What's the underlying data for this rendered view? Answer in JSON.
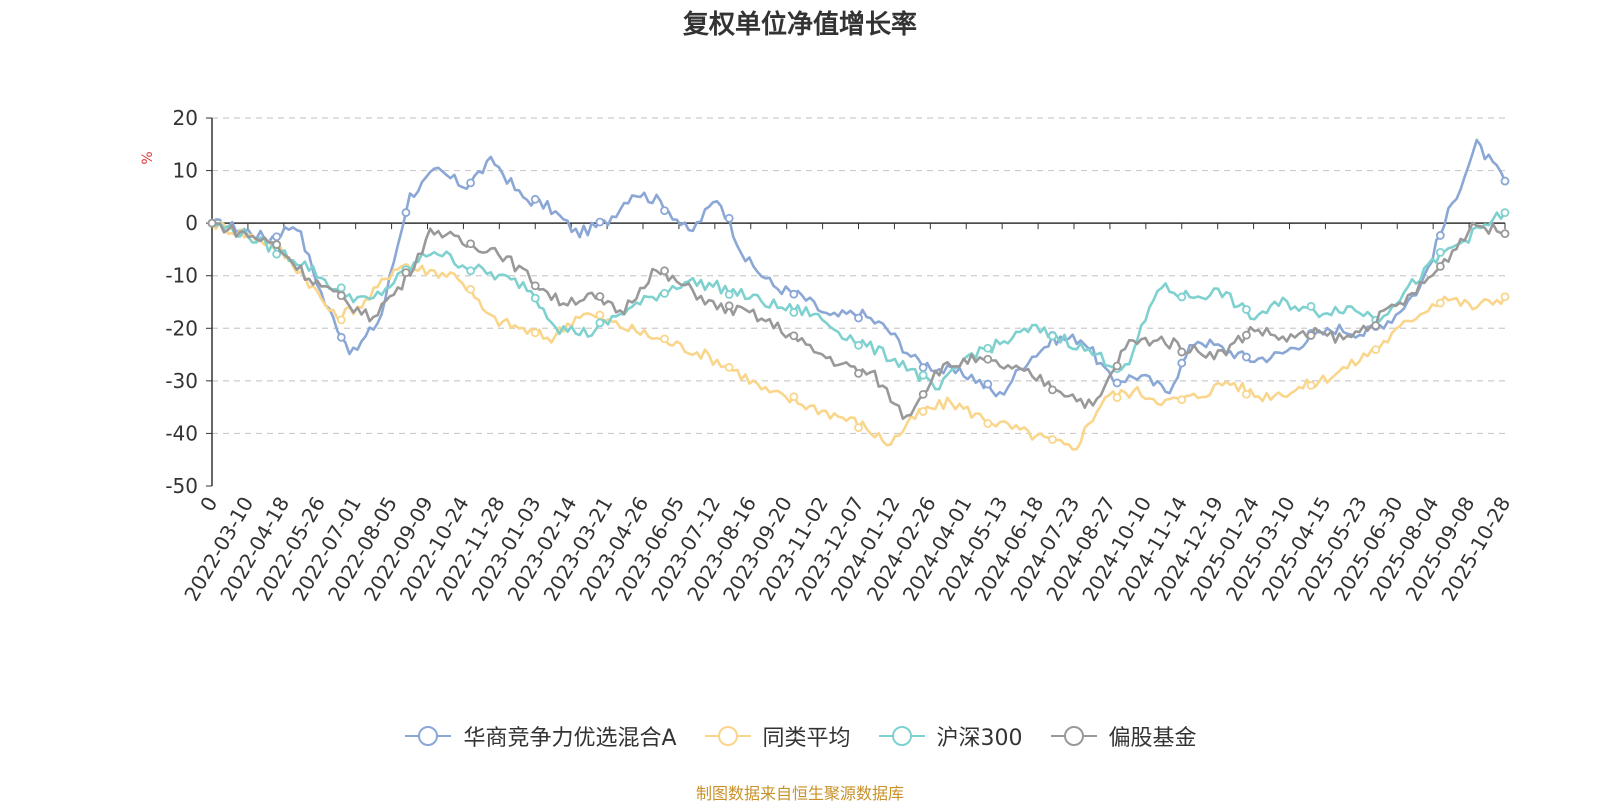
{
  "chart_data": {
    "type": "line",
    "title": "复权单位净值增长率",
    "ylabel": "%",
    "ylim": [
      -50,
      20
    ],
    "yticks": [
      -50,
      -40,
      -30,
      -20,
      -10,
      0,
      10,
      20
    ],
    "grid": true,
    "legend_position": "bottom",
    "x_ticks": [
      "0",
      "2022-03-10",
      "2022-04-18",
      "2022-05-26",
      "2022-07-01",
      "2022-08-05",
      "2022-09-09",
      "2022-10-24",
      "2022-11-28",
      "2023-01-03",
      "2023-02-14",
      "2023-03-21",
      "2023-04-26",
      "2023-06-05",
      "2023-07-12",
      "2023-08-16",
      "2023-09-20",
      "2023-11-02",
      "2023-12-07",
      "2024-01-12",
      "2024-02-26",
      "2024-04-01",
      "2024-05-13",
      "2024-06-18",
      "2024-07-23",
      "2024-08-27",
      "2024-10-10",
      "2024-11-14",
      "2024-12-19",
      "2025-01-24",
      "2025-03-10",
      "2025-04-15",
      "2025-05-23",
      "2025-06-30",
      "2025-08-04",
      "2025-09-08",
      "2025-10-28"
    ],
    "series": [
      {
        "name": "华商竞争力优选混合A",
        "color": "#8ba7d6",
        "values": [
          0,
          -1,
          -3,
          0,
          -15,
          -25,
          -18,
          5,
          10,
          7,
          12,
          5,
          3,
          -2,
          0,
          6,
          4,
          -2,
          5,
          -7,
          -12,
          -14,
          -18,
          -17,
          -20,
          -26,
          -28,
          -29,
          -33,
          -26,
          -22,
          -22,
          -30,
          -29,
          -32,
          -22,
          -24,
          -26,
          -25,
          -22,
          -20,
          -21,
          -18,
          -12,
          2,
          15,
          8
        ]
      },
      {
        "name": "同类平均",
        "color": "#f9d68b",
        "values": [
          0,
          -2,
          -4,
          -10,
          -18,
          -15,
          -8,
          -9,
          -10,
          -18,
          -20,
          -22,
          -17,
          -19,
          -21,
          -23,
          -25,
          -28,
          -32,
          -34,
          -36,
          -38,
          -42,
          -36,
          -34,
          -37,
          -39,
          -41,
          -43,
          -33,
          -32,
          -34,
          -33,
          -30,
          -33,
          -32,
          -30,
          -27,
          -23,
          -18,
          -14,
          -16,
          -14
        ]
      },
      {
        "name": "沪深300",
        "color": "#7fd1d0",
        "values": [
          0,
          -2,
          -5,
          -8,
          -13,
          -15,
          -10,
          -5,
          -8,
          -10,
          -12,
          -20,
          -21,
          -17,
          -14,
          -11,
          -12,
          -14,
          -16,
          -17,
          -21,
          -24,
          -27,
          -32,
          -25,
          -23,
          -20,
          -22,
          -25,
          -28,
          -12,
          -14,
          -13,
          -18,
          -15,
          -17,
          -16,
          -18,
          -12,
          -6,
          -2,
          2
        ]
      },
      {
        "name": "偏股基金",
        "color": "#999999",
        "values": [
          0,
          -2,
          -4,
          -10,
          -14,
          -18,
          -12,
          -1,
          -4,
          -5,
          -10,
          -15,
          -14,
          -17,
          -9,
          -12,
          -16,
          -17,
          -20,
          -24,
          -27,
          -29,
          -37,
          -28,
          -26,
          -27,
          -29,
          -32,
          -35,
          -23,
          -22,
          -24,
          -25,
          -20,
          -22,
          -21,
          -22,
          -18,
          -14,
          -8,
          0,
          -2
        ]
      }
    ]
  },
  "source_note": "制图数据来自恒生聚源数据库"
}
